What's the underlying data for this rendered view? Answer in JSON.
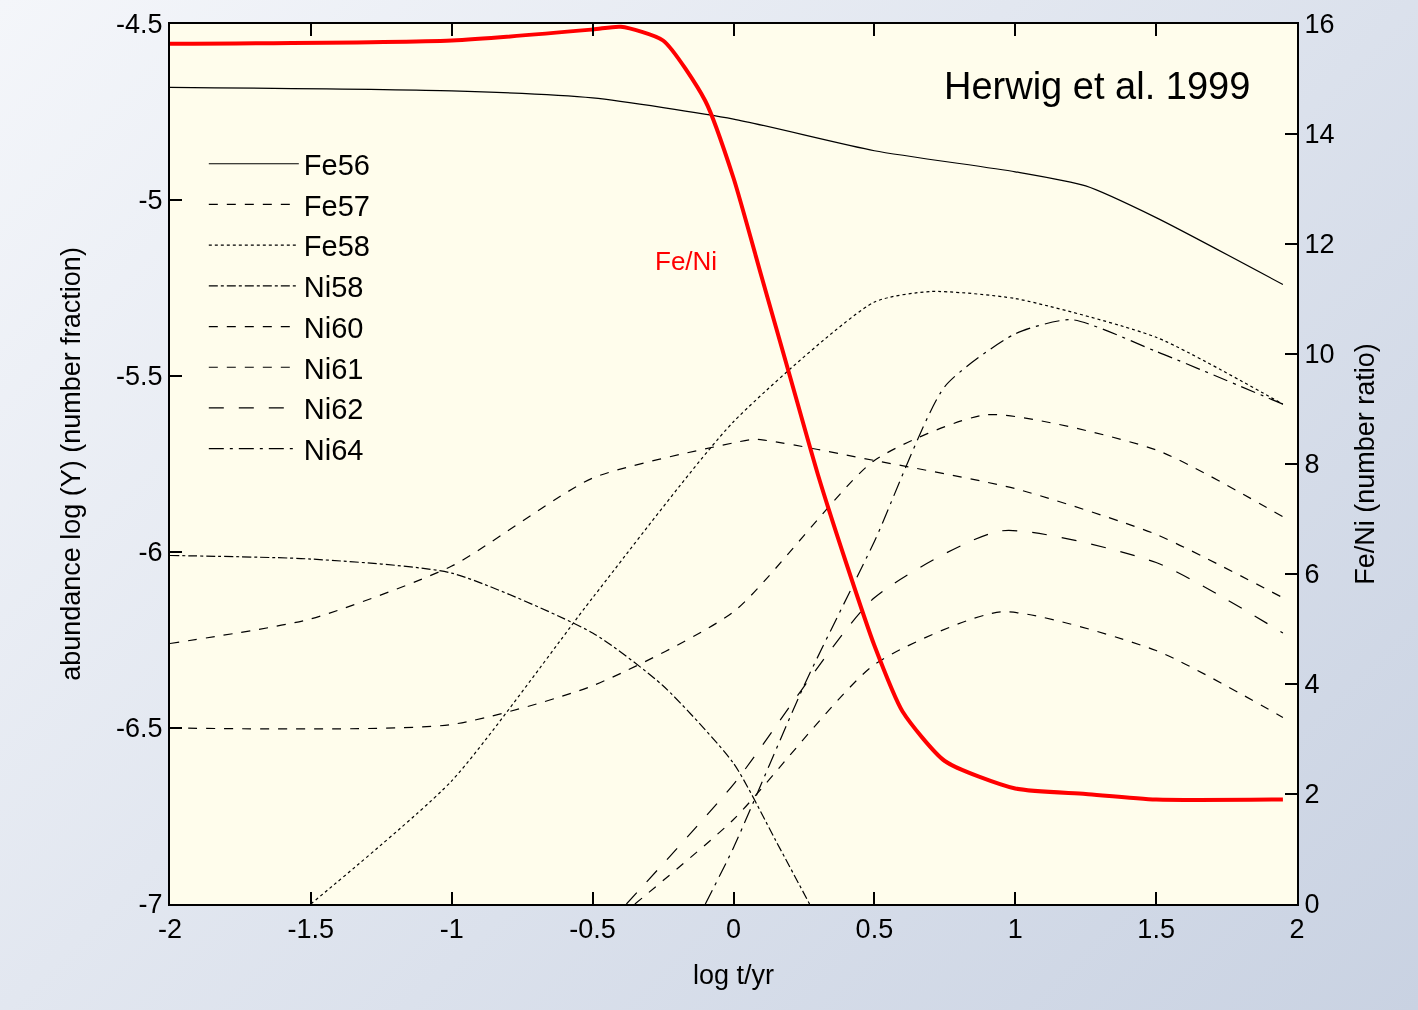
{
  "chart_data": {
    "type": "line",
    "xlabel": "log t/yr",
    "ylabel": "abundance log (Y) (number fraction)",
    "y2label": "Fe/Ni (number ratio)",
    "xlim": [
      -2,
      2
    ],
    "xticks": [
      -2,
      -1.5,
      -1,
      -0.5,
      0,
      0.5,
      1,
      1.5,
      2
    ],
    "ylim": [
      -7,
      -4.5
    ],
    "yticks": [
      -7,
      -6.5,
      -6,
      -5.5,
      -5,
      -4.5
    ],
    "y2lim": [
      0,
      16
    ],
    "y2ticks": [
      0,
      2,
      4,
      6,
      8,
      10,
      12,
      14,
      16
    ],
    "grid": false,
    "legend": "top left",
    "marker": "none",
    "annotations": [
      "Herwig et al. 1999"
    ],
    "series": [
      {
        "name": "Fe56",
        "color": "#000000",
        "line_style": "solid",
        "x": [
          -2,
          -1,
          -0.5,
          0,
          0.5,
          1,
          1.25,
          1.5,
          1.95
        ],
        "values": [
          -4.68,
          -4.69,
          -4.71,
          -4.77,
          -4.86,
          -4.92,
          -4.96,
          -5.05,
          -5.24
        ]
      },
      {
        "name": "Fe57",
        "color": "#000000",
        "line_style": "dashed",
        "x": [
          -2,
          -1.5,
          -1,
          -0.5,
          0,
          0.08,
          0.5,
          1,
          1.5,
          1.95
        ],
        "values": [
          -6.26,
          -6.19,
          -6.04,
          -5.79,
          -5.69,
          -5.68,
          -5.74,
          -5.82,
          -5.95,
          -6.13
        ]
      },
      {
        "name": "Fe58",
        "color": "#000000",
        "line_style": "dotted",
        "x": [
          -1.5,
          -1,
          -0.5,
          0,
          0.5,
          0.7,
          1,
          1.5,
          1.95
        ],
        "values": [
          -7,
          -6.65,
          -6.13,
          -5.63,
          -5.29,
          -5.26,
          -5.28,
          -5.39,
          -5.58
        ]
      },
      {
        "name": "Ni58",
        "color": "#000000",
        "line_style": "dashdot",
        "x": [
          -2,
          -1.5,
          -1,
          -0.5,
          -0.25,
          0,
          0.15,
          0.27
        ],
        "values": [
          -6.01,
          -6.02,
          -6.06,
          -6.23,
          -6.38,
          -6.6,
          -6.82,
          -7
        ]
      },
      {
        "name": "Ni60",
        "color": "#000000",
        "line_style": "dashed",
        "x": [
          -2,
          -1,
          -0.5,
          0,
          0.5,
          0.9,
          1.5,
          1.95
        ],
        "values": [
          -6.5,
          -6.49,
          -6.38,
          -6.17,
          -5.74,
          -5.61,
          -5.71,
          -5.9
        ]
      },
      {
        "name": "Ni61",
        "color": "#000000",
        "line_style": "dashed",
        "x": [
          -0.35,
          0,
          0.5,
          0.95,
          1.5,
          1.95
        ],
        "values": [
          -7,
          -6.76,
          -6.32,
          -6.17,
          -6.28,
          -6.47
        ]
      },
      {
        "name": "Ni62",
        "color": "#000000",
        "line_style": "longdash",
        "x": [
          -0.38,
          0,
          0.5,
          0.95,
          1.5,
          1.95
        ],
        "values": [
          -7,
          -6.66,
          -6.13,
          -5.94,
          -6.03,
          -6.23
        ]
      },
      {
        "name": "Ni64",
        "color": "#000000",
        "line_style": "longdashdot",
        "x": [
          -0.1,
          0,
          0.25,
          0.5,
          0.75,
          1,
          1.2,
          1.5,
          1.95
        ],
        "values": [
          -7,
          -6.84,
          -6.38,
          -5.97,
          -5.53,
          -5.38,
          -5.34,
          -5.43,
          -5.58
        ]
      },
      {
        "name": "Fe/Ni",
        "color": "#ff0000",
        "line_style": "solid",
        "axis": "y2",
        "x": [
          -2,
          -1,
          -0.5,
          -0.4,
          -0.25,
          -0.1,
          0,
          0.1,
          0.2,
          0.3,
          0.4,
          0.5,
          0.6,
          0.75,
          1,
          1.25,
          1.5,
          1.95
        ],
        "values": [
          15.64,
          15.7,
          15.9,
          15.95,
          15.7,
          14.6,
          13.2,
          11.4,
          9.6,
          7.8,
          6.2,
          4.7,
          3.5,
          2.6,
          2.1,
          2.0,
          1.9,
          1.9
        ]
      }
    ]
  }
}
